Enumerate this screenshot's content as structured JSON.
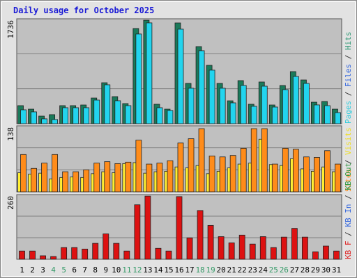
{
  "chart_data": {
    "type": "bar",
    "title": "Daily usage for October 2025",
    "categories": [
      "1",
      "2",
      "3",
      "4",
      "5",
      "6",
      "7",
      "8",
      "9",
      "10",
      "11",
      "12",
      "13",
      "14",
      "15",
      "16",
      "17",
      "18",
      "19",
      "20",
      "21",
      "22",
      "23",
      "24",
      "25",
      "26",
      "27",
      "28",
      "29",
      "30",
      "31"
    ],
    "weekend": [
      false,
      false,
      false,
      true,
      true,
      false,
      false,
      false,
      false,
      false,
      true,
      true,
      false,
      false,
      false,
      false,
      false,
      true,
      true,
      false,
      false,
      false,
      false,
      false,
      true,
      true,
      false,
      false,
      false,
      false,
      false
    ],
    "label_color": "#000000",
    "weekend_color": "#339966",
    "grid_divisions": 3,
    "panels": [
      {
        "ylim": [
          0,
          1736
        ],
        "yticks": [
          1736
        ],
        "legend": [
          {
            "text": "Pages",
            "color": "#33ccdd"
          },
          {
            "text": " / ",
            "color": "#333333"
          },
          {
            "text": "Files",
            "color": "#3366dd"
          },
          {
            "text": " / ",
            "color": "#333333"
          },
          {
            "text": "Hits",
            "color": "#339977"
          }
        ],
        "series": [
          {
            "name": "Hits",
            "color": "#1a7a5a",
            "values": [
              299,
              241,
              126,
              150,
              299,
              299,
              310,
              425,
              678,
              448,
              333,
              1575,
              1712,
              322,
              241,
              1667,
              667,
              1276,
              966,
              667,
              379,
              713,
              322,
              690,
              310,
              632,
              862,
              724,
              356,
              368,
              241
            ]
          },
          {
            "name": "Files",
            "color": "#22d4ee",
            "values": [
              230,
              196,
              81,
              69,
              265,
              265,
              265,
              391,
              644,
              380,
              299,
              1484,
              1668,
              265,
              219,
              1564,
              587,
              1208,
              886,
              587,
              345,
              633,
              288,
              621,
              276,
              564,
              782,
              667,
              311,
              299,
              184
            ]
          }
        ]
      },
      {
        "ylim": [
          0,
          138
        ],
        "yticks": [
          138
        ],
        "legend": [
          {
            "text": "Sites",
            "color": "#ff8c1a"
          },
          {
            "text": " / ",
            "color": "#333333"
          },
          {
            "text": "Visits",
            "color": "#eedd22"
          }
        ],
        "series": [
          {
            "name": "Visits",
            "color": "#ffee33",
            "values": [
              40,
              37,
              39,
              27,
              30,
              31,
              30,
              38,
              42,
              40,
              59,
              61,
              39,
              42,
              43,
              52,
              50,
              55,
              38,
              43,
              50,
              58,
              60,
              110,
              57,
              55,
              69,
              48,
              43,
              52,
              42
            ]
          },
          {
            "name": "Sites",
            "color": "#ff8c1a",
            "values": [
              78,
              49,
              60,
              78,
              42,
              42,
              46,
              60,
              63,
              59,
              62,
              108,
              58,
              60,
              65,
              102,
              111,
              132,
              75,
              73,
              76,
              91,
              132,
              132,
              58,
              91,
              89,
              73,
              72,
              86,
              58
            ]
          }
        ]
      },
      {
        "ylim": [
          0,
          260
        ],
        "yticks": [
          260
        ],
        "legend": [
          {
            "text": "KB F",
            "color": "#dd2222"
          },
          {
            "text": " / ",
            "color": "#333333"
          },
          {
            "text": "KB In",
            "color": "#3366dd"
          },
          {
            "text": " / ",
            "color": "#333333"
          },
          {
            "text": "KB Out",
            "color": "#339944"
          }
        ],
        "series": [
          {
            "name": "KB",
            "color": "#dd1111",
            "values": [
              33,
              33,
              14,
              11,
              47,
              47,
              41,
              64,
              102,
              64,
              33,
              219,
              254,
              44,
              33,
              252,
              86,
              196,
              136,
              91,
              66,
              97,
              61,
              91,
              47,
              89,
              124,
              89,
              30,
              53,
              33
            ]
          }
        ]
      }
    ]
  }
}
